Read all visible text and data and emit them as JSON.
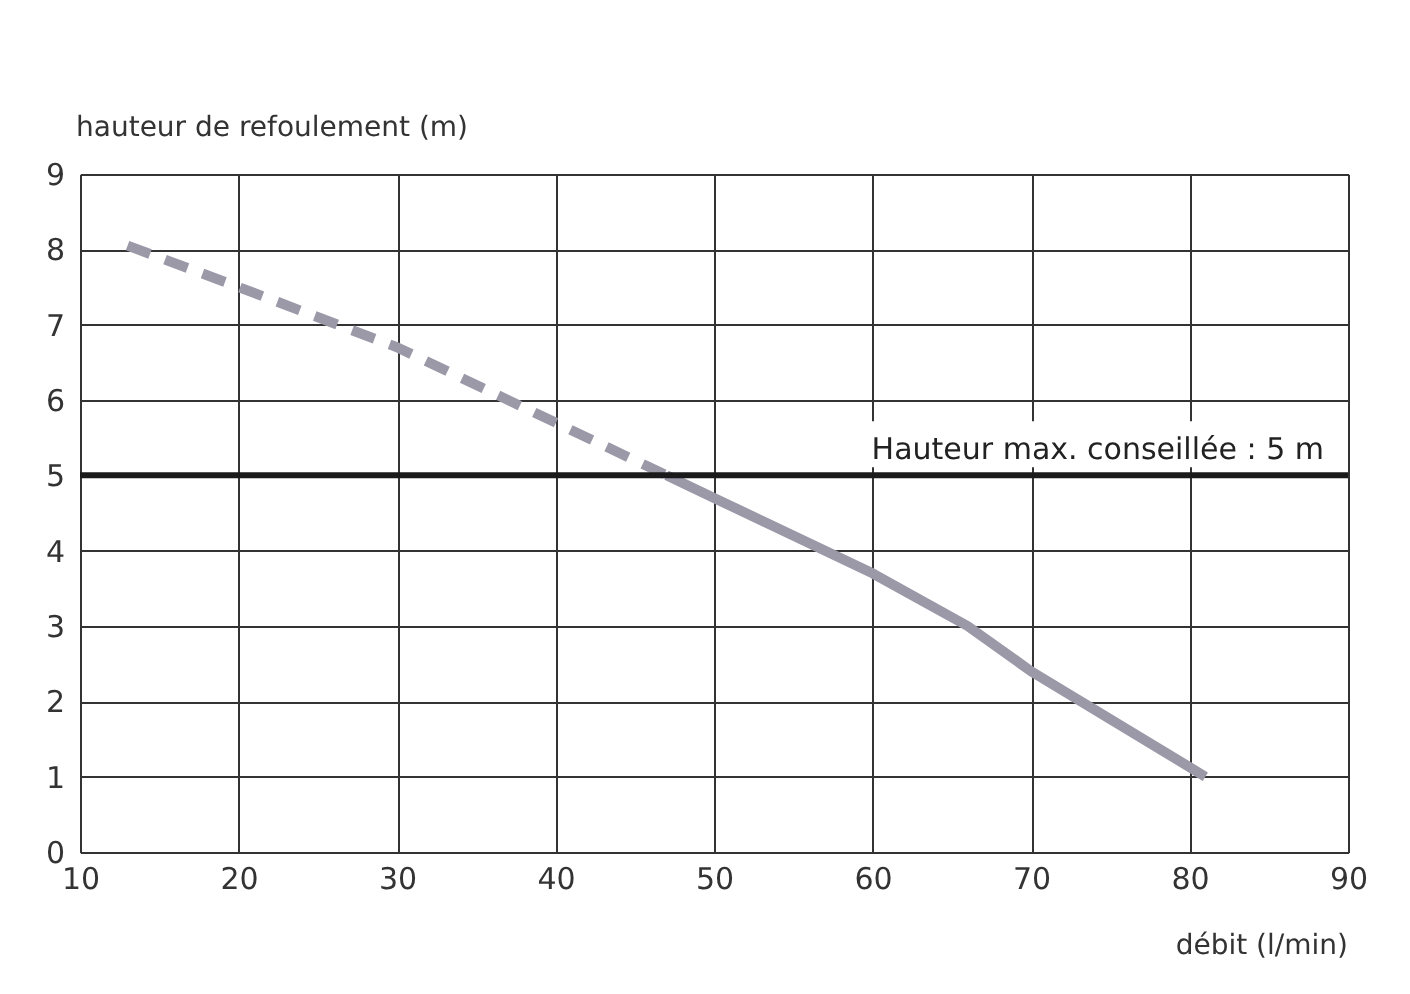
{
  "chart_data": {
    "type": "line",
    "xlabel": "débit (l/min)",
    "ylabel": "hauteur de refoulement (m)",
    "xlim": [
      10,
      90
    ],
    "xticks": [
      10,
      20,
      30,
      40,
      50,
      60,
      70,
      80,
      90
    ],
    "ylim": [
      0,
      9
    ],
    "yticks": [
      0,
      1,
      2,
      3,
      4,
      5,
      6,
      7,
      8,
      9
    ],
    "grid": true,
    "marker": "none",
    "series": [
      {
        "color": "#9b98a8",
        "line_style": "dashed",
        "x": [
          13,
          20,
          30,
          40,
          47
        ],
        "values": [
          8.05,
          7.5,
          6.7,
          5.7,
          5.0
        ]
      },
      {
        "color": "#9b98a8",
        "line_style": "solid",
        "x": [
          47,
          50,
          60,
          66,
          70,
          81
        ],
        "values": [
          5.0,
          4.7,
          3.7,
          3.0,
          2.4,
          1.0
        ]
      }
    ],
    "ref_lines": [
      {
        "axis": "y",
        "value": 5,
        "label": "Hauteur max. conseillée : 5 m",
        "color": "#1a1a1a"
      }
    ]
  }
}
